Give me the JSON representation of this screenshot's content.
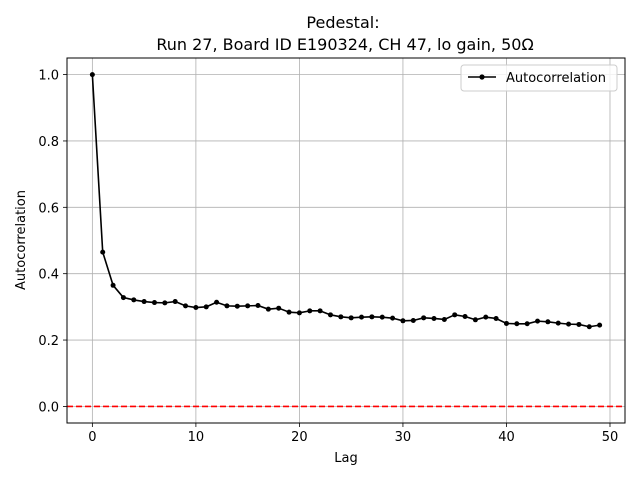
{
  "chart_data": {
    "type": "line",
    "title_line1": "Pedestal:",
    "title_line2": "Run 27, Board ID E190324, CH 47, lo gain, 50Ω",
    "xlabel": "Lag",
    "ylabel": "Autocorrelation",
    "xlim": [
      -2.45,
      51.45
    ],
    "ylim": [
      -0.05,
      1.05
    ],
    "xticks": [
      0,
      10,
      20,
      30,
      40,
      50
    ],
    "yticks": [
      0.0,
      0.2,
      0.4,
      0.6,
      0.8,
      1.0
    ],
    "xtick_labels": [
      "0",
      "10",
      "20",
      "30",
      "40",
      "50"
    ],
    "ytick_labels": [
      "0.0",
      "0.2",
      "0.4",
      "0.6",
      "0.8",
      "1.0"
    ],
    "grid": true,
    "legend_position": "top-right",
    "series": [
      {
        "name": "Autocorrelation",
        "color": "#000000",
        "marker": "circle",
        "x": [
          0,
          1,
          2,
          3,
          4,
          5,
          6,
          7,
          8,
          9,
          10,
          11,
          12,
          13,
          14,
          15,
          16,
          17,
          18,
          19,
          20,
          21,
          22,
          23,
          24,
          25,
          26,
          27,
          28,
          29,
          30,
          31,
          32,
          33,
          34,
          35,
          36,
          37,
          38,
          39,
          40,
          41,
          42,
          43,
          44,
          45,
          46,
          47,
          48,
          49
        ],
        "y": [
          1.0,
          0.465,
          0.365,
          0.328,
          0.321,
          0.316,
          0.313,
          0.312,
          0.316,
          0.303,
          0.298,
          0.3,
          0.314,
          0.303,
          0.302,
          0.303,
          0.304,
          0.293,
          0.296,
          0.284,
          0.282,
          0.288,
          0.288,
          0.276,
          0.27,
          0.267,
          0.269,
          0.27,
          0.269,
          0.266,
          0.258,
          0.259,
          0.267,
          0.265,
          0.262,
          0.276,
          0.271,
          0.261,
          0.269,
          0.265,
          0.25,
          0.249,
          0.249,
          0.257,
          0.255,
          0.251,
          0.248,
          0.247,
          0.24,
          0.245
        ]
      }
    ],
    "reference_line": {
      "y": 0.0,
      "color": "#ff0000",
      "style": "dashed"
    }
  }
}
